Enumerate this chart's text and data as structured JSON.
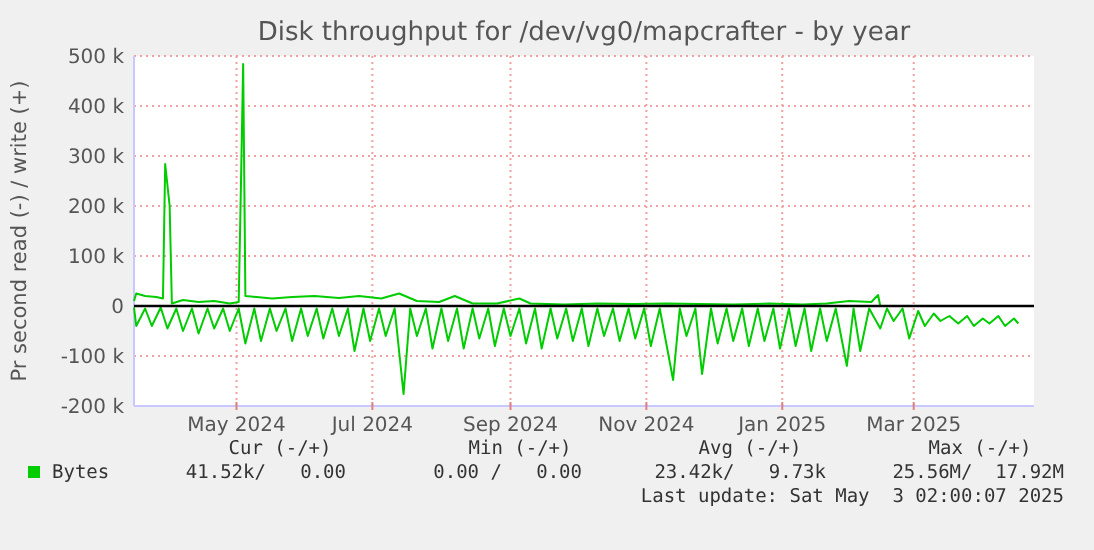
{
  "chart_data": {
    "type": "line",
    "title": "Disk throughput for /dev/vg0/mapcrafter - by year",
    "ylabel": "Pr second read (-) / write (+)",
    "xlim": [
      "2024-03-31",
      "2025-05-09"
    ],
    "xticks": [
      {
        "value": "2024-05-16",
        "label": "May 2024"
      },
      {
        "value": "2024-07-16",
        "label": "Jul 2024"
      },
      {
        "value": "2024-09-16",
        "label": "Sep 2024"
      },
      {
        "value": "2024-11-16",
        "label": "Nov 2024"
      },
      {
        "value": "2025-01-16",
        "label": "Jan 2025"
      },
      {
        "value": "2025-03-16",
        "label": "Mar 2025"
      }
    ],
    "ylim": [
      -200000,
      500000
    ],
    "yticks": [
      {
        "value": -200000,
        "label": "-200 k"
      },
      {
        "value": -100000,
        "label": "-100 k"
      },
      0,
      {
        "value": 100000,
        "label": "100 k"
      },
      {
        "value": 200000,
        "label": "200 k"
      },
      {
        "value": 300000,
        "label": "300 k"
      },
      {
        "value": 400000,
        "label": "400 k"
      },
      {
        "value": 500000,
        "label": "500 k"
      }
    ],
    "grid": true,
    "legend": "bottom",
    "line_style": "solid",
    "marker": "none",
    "ref_lines": [
      {
        "axis": "y",
        "value": 0,
        "color": "#000000"
      }
    ],
    "series": [
      {
        "name": "Bytes",
        "color": "#00cc00",
        "x": [
          "2024-03-31",
          "2024-04-01",
          "2024-04-05",
          "2024-04-10",
          "2024-04-13",
          "2024-04-14",
          "2024-04-16",
          "2024-04-17",
          "2024-04-22",
          "2024-04-29",
          "2024-05-06",
          "2024-05-13",
          "2024-05-17",
          "2024-05-18",
          "2024-05-19",
          "2024-05-20",
          "2024-06-01",
          "2024-06-10",
          "2024-06-20",
          "2024-07-01",
          "2024-07-10",
          "2024-07-20",
          "2024-07-28",
          "2024-08-05",
          "2024-08-15",
          "2024-08-22",
          "2024-08-30",
          "2024-09-10",
          "2024-09-20",
          "2024-09-25",
          "2024-10-10",
          "2024-10-25",
          "2024-11-10",
          "2024-11-25",
          "2024-12-10",
          "2024-12-25",
          "2025-01-10",
          "2025-01-25",
          "2025-02-05",
          "2025-02-15",
          "2025-02-25",
          "2025-02-28",
          "2025-03-01"
        ],
        "values": [
          10000,
          25000,
          20000,
          18000,
          15000,
          284000,
          200000,
          5000,
          12000,
          8000,
          10000,
          5000,
          8000,
          240000,
          484000,
          20000,
          15000,
          18000,
          20000,
          16000,
          20000,
          15000,
          25000,
          10000,
          8000,
          20000,
          5000,
          5000,
          15000,
          5000,
          3000,
          5000,
          4000,
          5000,
          4000,
          3000,
          5000,
          3000,
          5000,
          10000,
          8000,
          22000,
          0
        ]
      },
      {
        "color": "#00cc00",
        "x": [
          "2024-03-31",
          "2024-04-01",
          "2024-04-05",
          "2024-04-08",
          "2024-04-12",
          "2024-04-15",
          "2024-04-19",
          "2024-04-22",
          "2024-04-26",
          "2024-04-29",
          "2024-05-03",
          "2024-05-06",
          "2024-05-10",
          "2024-05-13",
          "2024-05-17",
          "2024-05-20",
          "2024-05-24",
          "2024-05-27",
          "2024-05-31",
          "2024-06-03",
          "2024-06-07",
          "2024-06-10",
          "2024-06-14",
          "2024-06-17",
          "2024-06-21",
          "2024-06-24",
          "2024-06-28",
          "2024-07-01",
          "2024-07-05",
          "2024-07-08",
          "2024-07-12",
          "2024-07-15",
          "2024-07-19",
          "2024-07-22",
          "2024-07-26",
          "2024-07-30",
          "2024-08-02",
          "2024-08-05",
          "2024-08-09",
          "2024-08-12",
          "2024-08-16",
          "2024-08-19",
          "2024-08-23",
          "2024-08-26",
          "2024-08-30",
          "2024-09-02",
          "2024-09-06",
          "2024-09-09",
          "2024-09-13",
          "2024-09-16",
          "2024-09-20",
          "2024-09-23",
          "2024-09-27",
          "2024-09-30",
          "2024-10-04",
          "2024-10-07",
          "2024-10-11",
          "2024-10-14",
          "2024-10-18",
          "2024-10-21",
          "2024-10-25",
          "2024-10-28",
          "2024-11-01",
          "2024-11-04",
          "2024-11-08",
          "2024-11-11",
          "2024-11-15",
          "2024-11-18",
          "2024-11-22",
          "2024-11-28",
          "2024-12-01",
          "2024-12-04",
          "2024-12-08",
          "2024-12-11",
          "2024-12-15",
          "2024-12-18",
          "2024-12-22",
          "2024-12-25",
          "2024-12-29",
          "2025-01-01",
          "2025-01-05",
          "2025-01-08",
          "2025-01-12",
          "2025-01-15",
          "2025-01-19",
          "2025-01-22",
          "2025-01-26",
          "2025-01-29",
          "2025-02-02",
          "2025-02-05",
          "2025-02-09",
          "2025-02-14",
          "2025-02-17",
          "2025-02-20",
          "2025-02-24",
          "2025-03-01",
          "2025-03-04",
          "2025-03-07",
          "2025-03-11",
          "2025-03-14",
          "2025-03-18",
          "2025-03-21",
          "2025-03-25",
          "2025-03-28",
          "2025-04-01",
          "2025-04-05",
          "2025-04-09",
          "2025-04-12",
          "2025-04-16",
          "2025-04-19",
          "2025-04-23",
          "2025-04-26",
          "2025-04-30",
          "2025-05-02"
        ],
        "values": [
          -3000,
          -40000,
          -5000,
          -40000,
          -3000,
          -45000,
          -5000,
          -50000,
          -5000,
          -55000,
          -5000,
          -45000,
          -5000,
          -50000,
          -5000,
          -75000,
          -5000,
          -70000,
          -5000,
          -50000,
          -5000,
          -70000,
          -5000,
          -60000,
          -5000,
          -65000,
          -5000,
          -60000,
          -5000,
          -90000,
          -5000,
          -70000,
          -5000,
          -60000,
          -5000,
          -176000,
          -5000,
          -60000,
          -5000,
          -85000,
          -5000,
          -70000,
          -5000,
          -85000,
          -5000,
          -65000,
          -5000,
          -80000,
          -5000,
          -60000,
          -5000,
          -75000,
          -5000,
          -85000,
          -5000,
          -65000,
          -5000,
          -70000,
          -5000,
          -80000,
          -5000,
          -60000,
          -5000,
          -70000,
          -5000,
          -65000,
          -5000,
          -80000,
          -5000,
          -148000,
          -5000,
          -60000,
          -5000,
          -136000,
          -5000,
          -75000,
          -5000,
          -70000,
          -5000,
          -80000,
          -5000,
          -70000,
          -5000,
          -85000,
          -5000,
          -80000,
          -5000,
          -90000,
          -5000,
          -70000,
          -5000,
          -120000,
          -5000,
          -90000,
          -5000,
          -45000,
          -5000,
          -30000,
          -5000,
          -65000,
          -10000,
          -40000,
          -15000,
          -30000,
          -20000,
          -35000,
          -20000,
          -40000,
          -25000,
          -35000,
          -20000,
          -40000,
          -25000,
          -35000
        ]
      }
    ],
    "annotations": [
      "Cur (-/+)",
      "Min (-/+)",
      "Avg (-/+)",
      "Max (-/+)",
      "41.52k/   0.00",
      "0.00 /   0.00",
      "23.42k/   9.73k",
      "25.56M/  17.92M",
      "Last update: Sat May  3 02:00:07 2025"
    ]
  }
}
